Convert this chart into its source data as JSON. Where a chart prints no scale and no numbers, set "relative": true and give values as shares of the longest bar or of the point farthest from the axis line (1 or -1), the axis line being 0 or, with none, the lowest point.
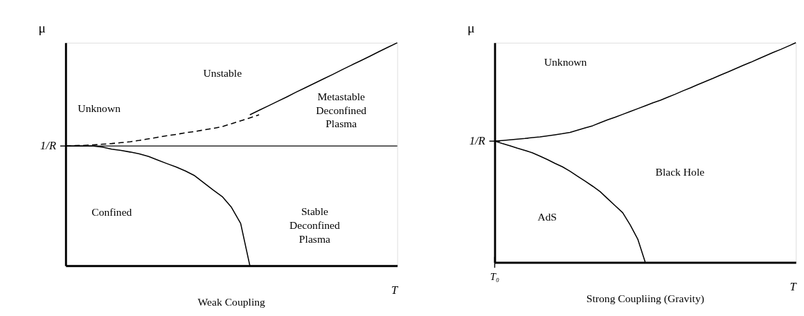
{
  "chart_data": [
    {
      "type": "line",
      "relative": true,
      "title": "Weak Coupling",
      "xlabel": "T",
      "ylabel": "μ",
      "legend": false,
      "grid": false,
      "categories": [
        null,
        null,
        null,
        null,
        null,
        null,
        null,
        null,
        null,
        null,
        null,
        null,
        null,
        null,
        null,
        null,
        null,
        null,
        null,
        null,
        null,
        null,
        null,
        null,
        null,
        null,
        null,
        null,
        null,
        null,
        null,
        null,
        null,
        null,
        null,
        null,
        null
      ],
      "ref_lines": [
        {
          "axis": "y",
          "value": 0.537,
          "label": "1/R",
          "color": "#000000",
          "line_style": "solid"
        }
      ],
      "series": [
        {
          "color": "#000000",
          "line_style": "dashed",
          "values": [
            0.537,
            0.539,
            0.54,
            0.542,
            0.545,
            0.548,
            0.552,
            0.556,
            0.562,
            0.569,
            0.576,
            0.583,
            0.589,
            0.596,
            0.602,
            0.609,
            0.616,
            0.624,
            0.637,
            0.65,
            0.663,
            0.677,
            null,
            null,
            null,
            null,
            null,
            null,
            null,
            null,
            null,
            null,
            null,
            null,
            null,
            null,
            null
          ]
        },
        {
          "color": "#000000",
          "line_style": "solid",
          "values": [
            null,
            null,
            null,
            null,
            null,
            null,
            null,
            null,
            null,
            null,
            null,
            null,
            null,
            null,
            null,
            null,
            null,
            null,
            null,
            null,
            0.677,
            0.697,
            0.717,
            0.737,
            0.757,
            0.778,
            0.798,
            0.818,
            0.838,
            0.858,
            0.879,
            0.899,
            0.919,
            0.939,
            0.96,
            0.98,
            1
          ]
        },
        {
          "color": "#000000",
          "line_style": "solid",
          "values": [
            0.537,
            0.537,
            0.537,
            0.537,
            0.532,
            0.523,
            0.517,
            0.51,
            0.502,
            0.49,
            0.474,
            0.458,
            0.443,
            0.425,
            0.404,
            0.372,
            0.34,
            0.31,
            0.262,
            0.19,
            0,
            null,
            null,
            null,
            null,
            null,
            null,
            null,
            null,
            null,
            null,
            null,
            null,
            null,
            null,
            null,
            null
          ]
        }
      ],
      "annotations": [
        "Unstable",
        "Unknown",
        "Metastable\nDeconfined\nPlasma",
        "Stable\nDeconfined\nPlasma",
        "Confined"
      ]
    },
    {
      "type": "line",
      "relative": true,
      "title": "Strong Coupliing (Gravity)",
      "xlabel": "T",
      "ylabel": "μ",
      "legend": false,
      "grid": false,
      "categories": [
        null,
        null,
        null,
        null,
        null,
        null,
        null,
        null,
        null,
        null,
        null,
        null,
        null,
        null,
        null,
        null,
        null,
        null,
        null,
        null,
        null,
        null,
        null,
        null,
        null,
        null,
        null,
        null,
        null,
        null,
        null,
        null,
        null,
        null,
        null,
        null,
        null,
        null,
        null,
        null,
        null
      ],
      "series": [
        {
          "color": "#000000",
          "line_style": "solid",
          "values": [
            0.552,
            0.555,
            0.558,
            0.561,
            0.564,
            0.568,
            0.571,
            0.576,
            0.581,
            0.586,
            0.592,
            0.602,
            0.612,
            0.622,
            0.636,
            0.649,
            0.661,
            0.674,
            0.687,
            0.7,
            0.713,
            0.726,
            0.738,
            0.752,
            0.766,
            0.781,
            0.795,
            0.81,
            0.824,
            0.838,
            0.853,
            0.867,
            0.882,
            0.897,
            0.911,
            0.926,
            0.941,
            0.956,
            0.97,
            0.985,
            1
          ]
        },
        {
          "color": "#000000",
          "line_style": "solid",
          "values": [
            0.552,
            0.541,
            0.531,
            0.52,
            0.51,
            0.499,
            0.484,
            0.468,
            0.451,
            0.435,
            0.415,
            0.392,
            0.37,
            0.347,
            0.322,
            0.29,
            0.258,
            0.226,
            0.17,
            0.106,
            0,
            null,
            null,
            null,
            null,
            null,
            null,
            null,
            null,
            null,
            null,
            null,
            null,
            null,
            null,
            null,
            null,
            null,
            null,
            null,
            null
          ]
        }
      ],
      "annotations": [
        "Unknown",
        "Black Hole",
        "AdS",
        "1/R",
        "T₀"
      ]
    }
  ]
}
